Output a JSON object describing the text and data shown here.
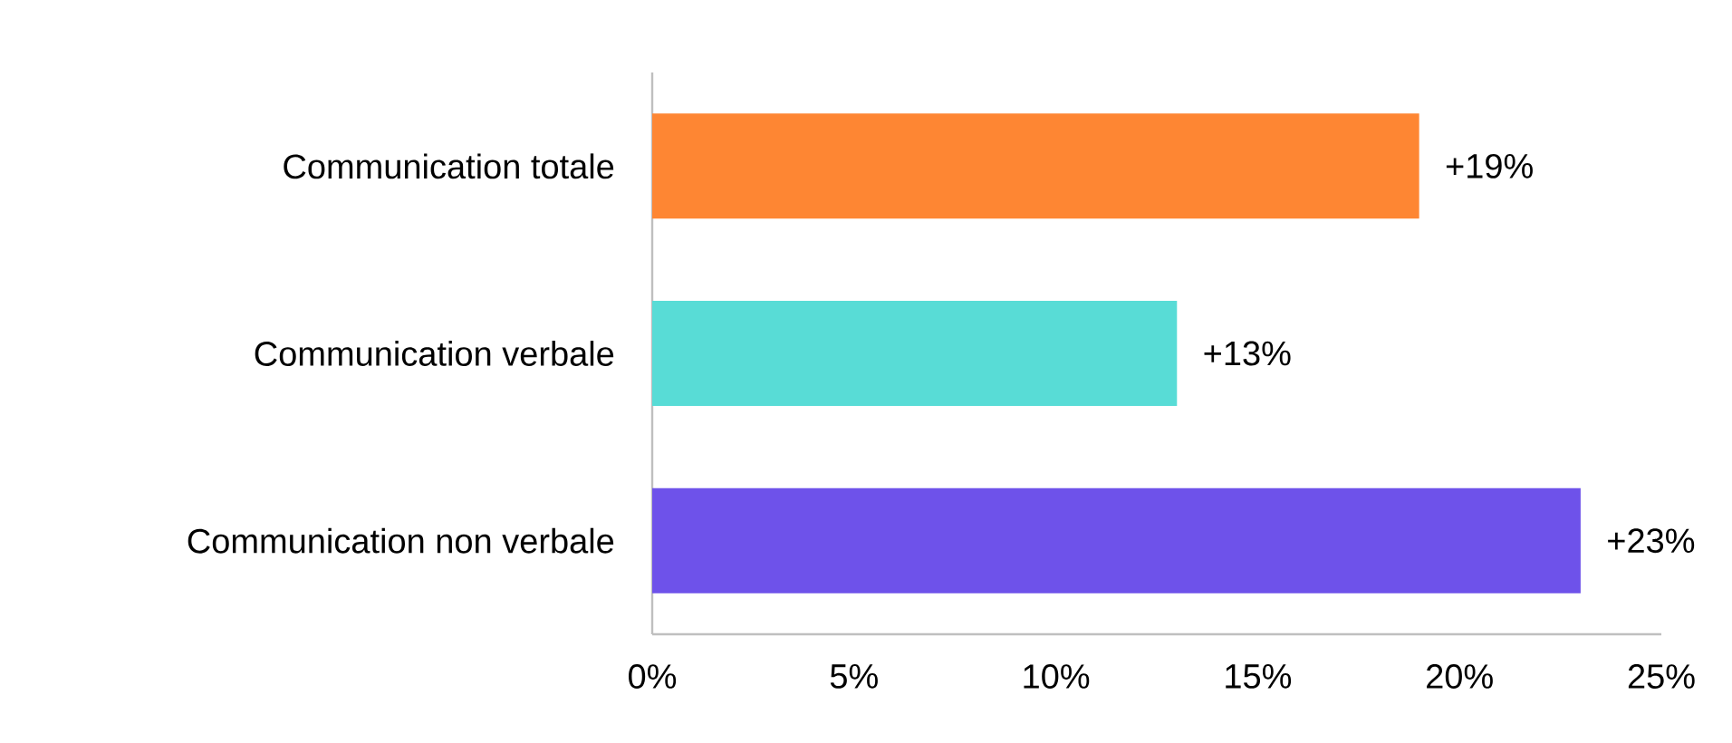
{
  "chart_data": {
    "type": "bar",
    "orientation": "horizontal",
    "categories": [
      "Communication totale",
      "Communication verbale",
      "Communication non verbale"
    ],
    "values": [
      19,
      13,
      23
    ],
    "colors": [
      "#fe8633",
      "#58dcd6",
      "#6e52ea"
    ],
    "value_labels": [
      "+19%",
      "+13%",
      "+23%"
    ],
    "xlim": [
      0,
      25
    ],
    "xticks": [
      {
        "value": 0,
        "label": "0%"
      },
      {
        "value": 5,
        "label": "5%"
      },
      {
        "value": 10,
        "label": "10%"
      },
      {
        "value": 15,
        "label": "15%"
      },
      {
        "value": 20,
        "label": "20%"
      },
      {
        "value": 25,
        "label": "25%"
      }
    ]
  }
}
